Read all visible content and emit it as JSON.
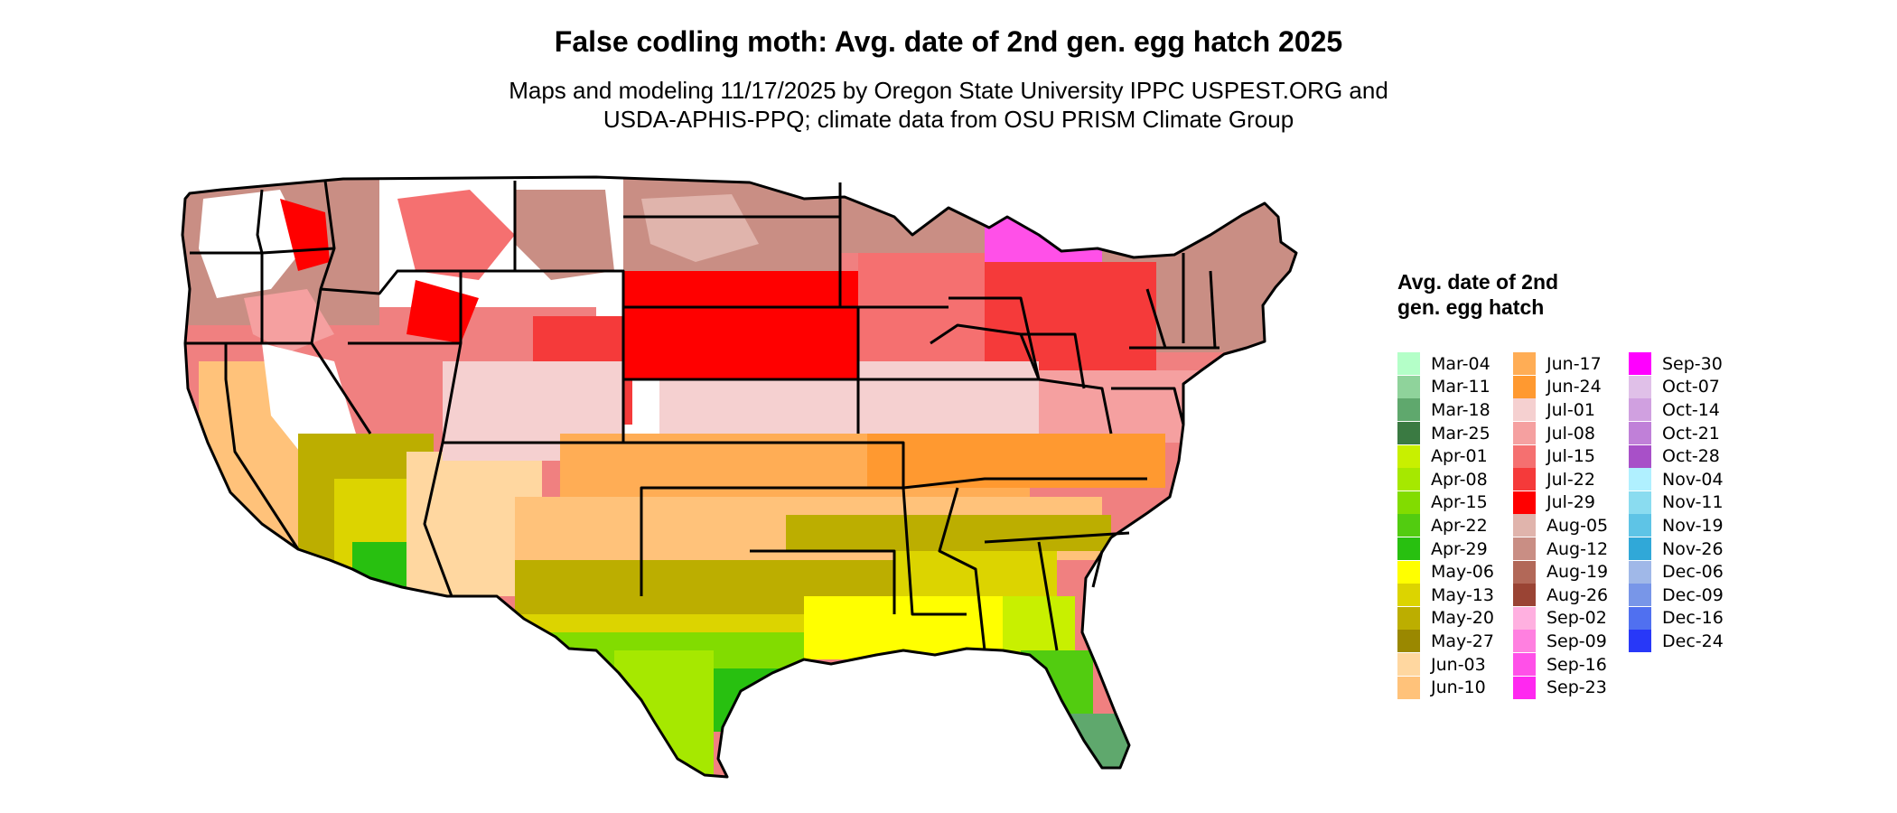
{
  "title": "False codling moth: Avg. date of 2nd gen. egg hatch 2025",
  "subtitle_lines": [
    "Maps and modeling 11/17/2025 by Oregon State University IPPC USPEST.ORG and",
    "USDA-APHIS-PPQ; climate data from OSU PRISM Climate Group"
  ],
  "legend": {
    "title": "Avg. date of 2nd gen. egg hatch",
    "items": [
      {
        "label": "Mar-04",
        "color": "#b4ffc8"
      },
      {
        "label": "Mar-11",
        "color": "#8fd39b"
      },
      {
        "label": "Mar-18",
        "color": "#5fa86d"
      },
      {
        "label": "Mar-25",
        "color": "#3a7a42"
      },
      {
        "label": "Apr-01",
        "color": "#c8f000"
      },
      {
        "label": "Apr-08",
        "color": "#a6e800"
      },
      {
        "label": "Apr-15",
        "color": "#82dc00"
      },
      {
        "label": "Apr-22",
        "color": "#52cc10"
      },
      {
        "label": "Apr-29",
        "color": "#28c010"
      },
      {
        "label": "May-06",
        "color": "#ffff00"
      },
      {
        "label": "May-13",
        "color": "#dcd400"
      },
      {
        "label": "May-20",
        "color": "#bcae00"
      },
      {
        "label": "May-27",
        "color": "#9a8800"
      },
      {
        "label": "Jun-03",
        "color": "#ffd7a0"
      },
      {
        "label": "Jun-10",
        "color": "#ffc27a"
      },
      {
        "label": "Jun-17",
        "color": "#ffad55"
      },
      {
        "label": "Jun-24",
        "color": "#ff9930"
      },
      {
        "label": "Jul-01",
        "color": "#f5d0d0"
      },
      {
        "label": "Jul-08",
        "color": "#f5a0a0"
      },
      {
        "label": "Jul-15",
        "color": "#f57070"
      },
      {
        "label": "Jul-22",
        "color": "#f53a3a"
      },
      {
        "label": "Jul-29",
        "color": "#ff0000"
      },
      {
        "label": "Aug-05",
        "color": "#e0b4ac"
      },
      {
        "label": "Aug-12",
        "color": "#c98e84"
      },
      {
        "label": "Aug-19",
        "color": "#b26858"
      },
      {
        "label": "Aug-26",
        "color": "#9a4434"
      },
      {
        "label": "Sep-02",
        "color": "#ffb0e0"
      },
      {
        "label": "Sep-09",
        "color": "#ff80e0"
      },
      {
        "label": "Sep-16",
        "color": "#ff50e8"
      },
      {
        "label": "Sep-23",
        "color": "#ff28f0"
      },
      {
        "label": "Sep-30",
        "color": "#ff00ff"
      },
      {
        "label": "Oct-07",
        "color": "#e0c0e8"
      },
      {
        "label": "Oct-14",
        "color": "#d0a0e0"
      },
      {
        "label": "Oct-21",
        "color": "#c080d8"
      },
      {
        "label": "Oct-28",
        "color": "#a850c8"
      },
      {
        "label": "Nov-04",
        "color": "#b0f0ff"
      },
      {
        "label": "Nov-11",
        "color": "#8adcf0"
      },
      {
        "label": "Nov-19",
        "color": "#5ec4e6"
      },
      {
        "label": "Nov-26",
        "color": "#30a8d8"
      },
      {
        "label": "Dec-06",
        "color": "#a0b8e8"
      },
      {
        "label": "Dec-09",
        "color": "#7896e8"
      },
      {
        "label": "Dec-16",
        "color": "#5070f0"
      },
      {
        "label": "Dec-24",
        "color": "#2838f8"
      }
    ]
  }
}
